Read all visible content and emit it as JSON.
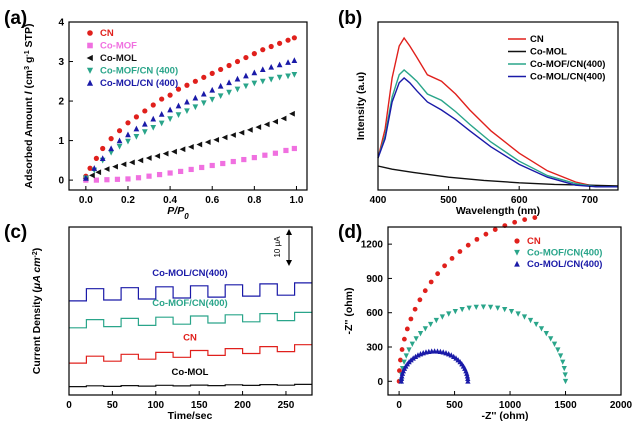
{
  "chart_data": [
    {
      "panel": "(a)",
      "type": "scatter",
      "xlabel": "P/P0",
      "ylabel": "Adsorbed Amount / (cm3 g-1 STP)",
      "xlim": [
        -0.08,
        1.05
      ],
      "ylim": [
        -0.25,
        4.0
      ],
      "xticks": [
        0.0,
        0.2,
        0.4,
        0.6,
        0.8,
        1.0
      ],
      "yticks": [
        0,
        1,
        2,
        3,
        4
      ],
      "legend_position": "top-left",
      "series": [
        {
          "name": "CN",
          "color": "#e0201c",
          "marker": "circle",
          "points": [
            [
              0.0,
              0.1
            ],
            [
              0.02,
              0.3
            ],
            [
              0.05,
              0.55
            ],
            [
              0.08,
              0.8
            ],
            [
              0.12,
              1.05
            ],
            [
              0.16,
              1.25
            ],
            [
              0.2,
              1.45
            ],
            [
              0.24,
              1.6
            ],
            [
              0.28,
              1.75
            ],
            [
              0.32,
              1.9
            ],
            [
              0.36,
              2.05
            ],
            [
              0.4,
              2.15
            ],
            [
              0.44,
              2.3
            ],
            [
              0.48,
              2.4
            ],
            [
              0.52,
              2.5
            ],
            [
              0.56,
              2.6
            ],
            [
              0.6,
              2.7
            ],
            [
              0.64,
              2.8
            ],
            [
              0.68,
              2.9
            ],
            [
              0.72,
              3.0
            ],
            [
              0.76,
              3.1
            ],
            [
              0.8,
              3.2
            ],
            [
              0.84,
              3.3
            ],
            [
              0.88,
              3.38
            ],
            [
              0.92,
              3.46
            ],
            [
              0.96,
              3.54
            ],
            [
              0.99,
              3.6
            ]
          ]
        },
        {
          "name": "Co-MOF",
          "color": "#f070e0",
          "marker": "square",
          "points": [
            [
              0.0,
              0.0
            ],
            [
              0.05,
              0.0
            ],
            [
              0.1,
              0.01
            ],
            [
              0.15,
              0.02
            ],
            [
              0.2,
              0.03
            ],
            [
              0.25,
              0.06
            ],
            [
              0.3,
              0.1
            ],
            [
              0.35,
              0.14
            ],
            [
              0.4,
              0.18
            ],
            [
              0.45,
              0.22
            ],
            [
              0.5,
              0.27
            ],
            [
              0.55,
              0.32
            ],
            [
              0.6,
              0.37
            ],
            [
              0.65,
              0.42
            ],
            [
              0.7,
              0.47
            ],
            [
              0.75,
              0.52
            ],
            [
              0.8,
              0.57
            ],
            [
              0.85,
              0.63
            ],
            [
              0.9,
              0.68
            ],
            [
              0.95,
              0.75
            ],
            [
              0.99,
              0.8
            ]
          ]
        },
        {
          "name": "Co-MOL",
          "color": "#111111",
          "marker": "triangle-left",
          "points": [
            [
              0.0,
              0.05
            ],
            [
              0.03,
              0.12
            ],
            [
              0.06,
              0.2
            ],
            [
              0.1,
              0.28
            ],
            [
              0.14,
              0.34
            ],
            [
              0.18,
              0.4
            ],
            [
              0.22,
              0.45
            ],
            [
              0.26,
              0.5
            ],
            [
              0.3,
              0.56
            ],
            [
              0.34,
              0.61
            ],
            [
              0.38,
              0.67
            ],
            [
              0.42,
              0.72
            ],
            [
              0.46,
              0.78
            ],
            [
              0.5,
              0.84
            ],
            [
              0.54,
              0.9
            ],
            [
              0.58,
              0.96
            ],
            [
              0.62,
              1.02
            ],
            [
              0.66,
              1.08
            ],
            [
              0.7,
              1.14
            ],
            [
              0.74,
              1.2
            ],
            [
              0.78,
              1.27
            ],
            [
              0.82,
              1.34
            ],
            [
              0.86,
              1.41
            ],
            [
              0.9,
              1.48
            ],
            [
              0.94,
              1.56
            ],
            [
              0.98,
              1.68
            ]
          ]
        },
        {
          "name": "Co-MOF/CN (400)",
          "color": "#2aa58a",
          "marker": "triangle-down",
          "points": [
            [
              0.0,
              0.05
            ],
            [
              0.04,
              0.25
            ],
            [
              0.08,
              0.5
            ],
            [
              0.12,
              0.7
            ],
            [
              0.16,
              0.85
            ],
            [
              0.2,
              0.98
            ],
            [
              0.24,
              1.1
            ],
            [
              0.28,
              1.22
            ],
            [
              0.32,
              1.33
            ],
            [
              0.36,
              1.44
            ],
            [
              0.4,
              1.55
            ],
            [
              0.44,
              1.65
            ],
            [
              0.48,
              1.75
            ],
            [
              0.52,
              1.85
            ],
            [
              0.56,
              1.95
            ],
            [
              0.6,
              2.04
            ],
            [
              0.64,
              2.13
            ],
            [
              0.68,
              2.22
            ],
            [
              0.72,
              2.3
            ],
            [
              0.76,
              2.38
            ],
            [
              0.8,
              2.45
            ],
            [
              0.84,
              2.5
            ],
            [
              0.88,
              2.55
            ],
            [
              0.92,
              2.6
            ],
            [
              0.96,
              2.63
            ],
            [
              0.99,
              2.67
            ]
          ]
        },
        {
          "name": "Co-MOL/CN (400)",
          "color": "#1a1aa8",
          "marker": "triangle-up",
          "points": [
            [
              0.0,
              0.05
            ],
            [
              0.04,
              0.3
            ],
            [
              0.08,
              0.55
            ],
            [
              0.12,
              0.8
            ],
            [
              0.16,
              1.0
            ],
            [
              0.2,
              1.15
            ],
            [
              0.24,
              1.3
            ],
            [
              0.28,
              1.42
            ],
            [
              0.32,
              1.55
            ],
            [
              0.36,
              1.67
            ],
            [
              0.4,
              1.78
            ],
            [
              0.44,
              1.88
            ],
            [
              0.48,
              1.98
            ],
            [
              0.52,
              2.08
            ],
            [
              0.56,
              2.18
            ],
            [
              0.6,
              2.28
            ],
            [
              0.64,
              2.38
            ],
            [
              0.68,
              2.47
            ],
            [
              0.72,
              2.56
            ],
            [
              0.76,
              2.64
            ],
            [
              0.8,
              2.72
            ],
            [
              0.84,
              2.8
            ],
            [
              0.88,
              2.86
            ],
            [
              0.92,
              2.92
            ],
            [
              0.96,
              2.98
            ],
            [
              0.99,
              3.03
            ]
          ]
        }
      ]
    },
    {
      "panel": "(b)",
      "type": "line",
      "xlabel": "Wavelength (nm)",
      "ylabel": "Intensity (a.u)",
      "xlim": [
        400,
        740
      ],
      "ylim": [
        0,
        1
      ],
      "xticks": [
        400,
        500,
        600,
        700
      ],
      "legend_position": "top-right",
      "series": [
        {
          "name": "CN",
          "color": "#e0201c",
          "points": [
            [
              400,
              0.2
            ],
            [
              410,
              0.38
            ],
            [
              420,
              0.7
            ],
            [
              430,
              0.9
            ],
            [
              437,
              0.95
            ],
            [
              445,
              0.9
            ],
            [
              455,
              0.83
            ],
            [
              470,
              0.72
            ],
            [
              490,
              0.68
            ],
            [
              510,
              0.6
            ],
            [
              530,
              0.5
            ],
            [
              560,
              0.37
            ],
            [
              600,
              0.23
            ],
            [
              640,
              0.12
            ],
            [
              680,
              0.05
            ],
            [
              710,
              0.02
            ],
            [
              740,
              0.02
            ]
          ]
        },
        {
          "name": "Co-MOL",
          "color": "#111111",
          "points": [
            [
              400,
              0.15
            ],
            [
              420,
              0.13
            ],
            [
              450,
              0.11
            ],
            [
              500,
              0.08
            ],
            [
              550,
              0.06
            ],
            [
              600,
              0.045
            ],
            [
              650,
              0.035
            ],
            [
              700,
              0.03
            ],
            [
              740,
              0.025
            ]
          ]
        },
        {
          "name": "Co-MOF/CN(400)",
          "color": "#2aa58a",
          "points": [
            [
              400,
              0.2
            ],
            [
              410,
              0.34
            ],
            [
              420,
              0.58
            ],
            [
              430,
              0.72
            ],
            [
              437,
              0.75
            ],
            [
              445,
              0.72
            ],
            [
              455,
              0.68
            ],
            [
              470,
              0.6
            ],
            [
              490,
              0.56
            ],
            [
              510,
              0.49
            ],
            [
              530,
              0.41
            ],
            [
              560,
              0.3
            ],
            [
              600,
              0.18
            ],
            [
              640,
              0.09
            ],
            [
              680,
              0.04
            ],
            [
              710,
              0.02
            ],
            [
              740,
              0.02
            ]
          ]
        },
        {
          "name": "Co-MOL/CN(400)",
          "color": "#1a1aa8",
          "points": [
            [
              400,
              0.2
            ],
            [
              410,
              0.32
            ],
            [
              420,
              0.55
            ],
            [
              430,
              0.67
            ],
            [
              437,
              0.7
            ],
            [
              445,
              0.67
            ],
            [
              455,
              0.62
            ],
            [
              470,
              0.55
            ],
            [
              490,
              0.5
            ],
            [
              510,
              0.44
            ],
            [
              530,
              0.37
            ],
            [
              560,
              0.27
            ],
            [
              600,
              0.16
            ],
            [
              640,
              0.08
            ],
            [
              680,
              0.03
            ],
            [
              710,
              0.02
            ],
            [
              740,
              0.02
            ]
          ]
        }
      ]
    },
    {
      "panel": "(c)",
      "type": "line",
      "xlabel": "Time/sec",
      "ylabel": "Current Density (μA cm-2)",
      "xlim": [
        0,
        280
      ],
      "ylim": [
        0,
        1
      ],
      "xticks": [
        0,
        50,
        100,
        150,
        200,
        250
      ],
      "scale_bar": "10 μA",
      "series": [
        {
          "name": "Co-MOL/CN(400)",
          "color": "#1a1aa8",
          "label_position": "above",
          "base": 0.56,
          "step": 0.07,
          "drift": 0.04
        },
        {
          "name": "Co-MOF/CN(400)",
          "color": "#2aa58a",
          "label_position": "above",
          "base": 0.4,
          "step": 0.045,
          "drift": 0.05
        },
        {
          "name": "CN",
          "color": "#e0201c",
          "label_position": "above",
          "base": 0.19,
          "step": 0.035,
          "drift": 0.08
        },
        {
          "name": "Co-MOL",
          "color": "#111111",
          "label_position": "above",
          "base": 0.05,
          "step": 0.004,
          "drift": 0.01
        }
      ],
      "on_off_period": 20
    },
    {
      "panel": "(d)",
      "type": "scatter",
      "xlabel": "-Z'' (ohm)",
      "ylabel": "-Z'' (ohm)",
      "xlim": [
        -100,
        2000
      ],
      "ylim": [
        -120,
        1350
      ],
      "xticks": [
        0,
        500,
        1000,
        1500,
        2000
      ],
      "yticks": [
        0,
        300,
        600,
        900,
        1200
      ],
      "legend_position": "top-right",
      "series": [
        {
          "name": "CN",
          "color": "#e0201c",
          "marker": "circle",
          "arc": {
            "center": 1450,
            "radius": 1450,
            "t_max": 0.45
          }
        },
        {
          "name": "Co-MOF/CN(400)",
          "color": "#2aa58a",
          "marker": "triangle-down",
          "arc": {
            "center": 760,
            "radius": 740,
            "t_max": 1.0
          }
        },
        {
          "name": "Co-MOL/CN(400)",
          "color": "#1a1aa8",
          "marker": "triangle-up",
          "arc": {
            "center": 320,
            "radius": 300,
            "t_max": 1.0
          }
        }
      ]
    }
  ],
  "panels": {
    "a": {
      "label": "(a)",
      "xlabel": "P/P",
      "xlabel_sub": "0",
      "ylabel_main": "Adsorbed Amount ",
      "ylabel_italic": "l",
      "ylabel_unit": " (cm",
      "ylabel_sup": "3",
      "ylabel_unit2": " g",
      "ylabel_sup2": "-1",
      "ylabel_unit3": " STP)",
      "xtick_labels": [
        "0.0",
        "0.2",
        "0.4",
        "0.6",
        "0.8",
        "1.0"
      ],
      "ytick_labels": [
        "0",
        "1",
        "2",
        "3",
        "4"
      ],
      "legend": [
        "CN",
        "Co-MOF",
        "Co-MOL",
        "Co-MOF/CN (400)",
        "Co-MOL/CN (400)"
      ]
    },
    "b": {
      "label": "(b)",
      "xlabel": "Wavelength (nm)",
      "ylabel": "Intensity (a.u)",
      "xtick_labels": [
        "400",
        "500",
        "600",
        "700"
      ],
      "legend": [
        "CN",
        "Co-MOL",
        "Co-MOF/CN(400)",
        "Co-MOL/CN(400)"
      ]
    },
    "c": {
      "label": "(c)",
      "xlabel": "Time/sec",
      "ylabel_main": "Current Density (",
      "ylabel_mu": "μA cm",
      "ylabel_sup": "-2",
      "ylabel_close": ")",
      "xtick_labels": [
        "0",
        "50",
        "100",
        "150",
        "200",
        "250"
      ],
      "scale_bar": "10 μA",
      "curve_labels": [
        "Co-MOL/CN(400)",
        "Co-MOF/CN(400)",
        "CN",
        "Co-MOL"
      ]
    },
    "d": {
      "label": "(d)",
      "xlabel": "-Z'' (ohm)",
      "ylabel": "-Z'' (ohm)",
      "xtick_labels": [
        "0",
        "500",
        "1000",
        "1500",
        "2000"
      ],
      "ytick_labels": [
        "0",
        "300",
        "600",
        "900",
        "1200"
      ],
      "legend": [
        "CN",
        "Co-MOF/CN(400)",
        "Co-MOL/CN(400)"
      ]
    }
  }
}
